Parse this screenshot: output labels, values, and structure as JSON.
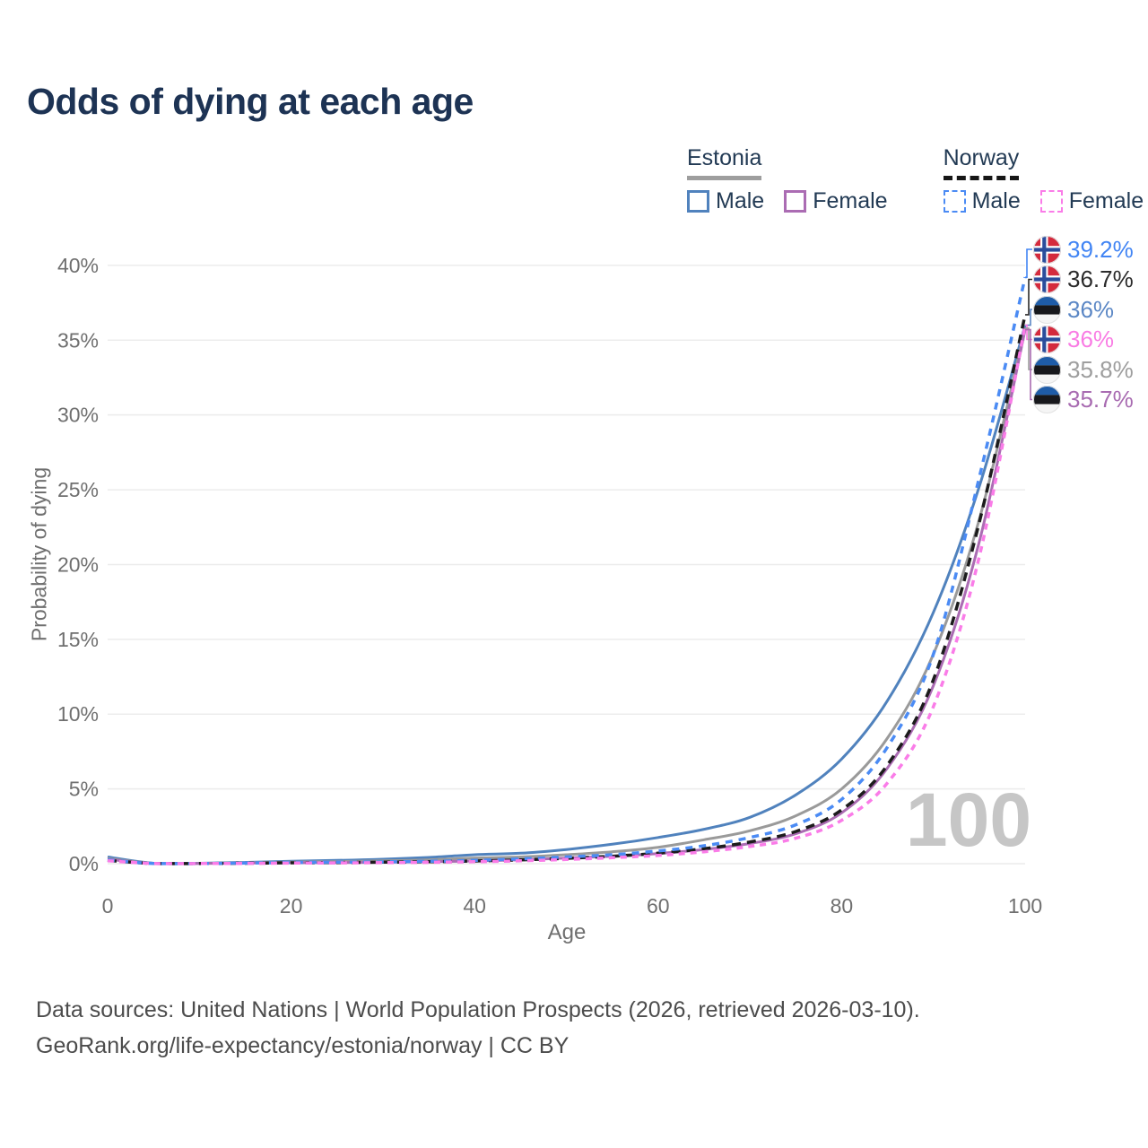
{
  "title": "Odds of dying at each age",
  "legend": {
    "groups": [
      {
        "name": "Estonia",
        "line_style": "solid",
        "combined_color": "#9e9e9e",
        "items": [
          {
            "label": "Male",
            "color": "#5082bd",
            "dashed": false
          },
          {
            "label": "Female",
            "color": "#ab6cb3",
            "dashed": false
          }
        ]
      },
      {
        "name": "Norway",
        "line_style": "dashed",
        "combined_color": "#161616",
        "items": [
          {
            "label": "Male",
            "color": "#4b8bf4",
            "dashed": true
          },
          {
            "label": "Female",
            "color": "#fa7ce8",
            "dashed": true
          }
        ]
      }
    ]
  },
  "chart_data": {
    "type": "line",
    "title": "Odds of dying at each age",
    "xlabel": "Age",
    "ylabel": "Probability of dying",
    "xlim": [
      0,
      100
    ],
    "ylim": [
      0,
      40
    ],
    "x_ticks": [
      "0",
      "20",
      "40",
      "60",
      "80",
      "100"
    ],
    "x_tick_values": [
      0,
      20,
      40,
      60,
      80,
      100
    ],
    "y_ticks": [
      "0%",
      "5%",
      "10%",
      "15%",
      "20%",
      "25%",
      "30%",
      "35%",
      "40%"
    ],
    "y_tick_values": [
      0,
      5,
      10,
      15,
      20,
      25,
      30,
      35,
      40
    ],
    "grid": true,
    "legend_position": "top-right",
    "hover_age_watermark": "100",
    "unit": "percent",
    "ages": [
      0,
      5,
      10,
      15,
      20,
      25,
      30,
      35,
      40,
      45,
      50,
      55,
      60,
      65,
      70,
      75,
      80,
      85,
      90,
      95,
      100
    ],
    "series": [
      {
        "name": "Estonia Male",
        "country": "estonia",
        "sex": "male",
        "color": "#5082bd",
        "dashed": false,
        "values": [
          0.45,
          0.03,
          0.03,
          0.09,
          0.17,
          0.22,
          0.3,
          0.42,
          0.6,
          0.7,
          0.95,
          1.3,
          1.75,
          2.3,
          3.1,
          4.6,
          7.0,
          10.9,
          16.8,
          25.2,
          36.0
        ],
        "end_label": "36%"
      },
      {
        "name": "Estonia Combined",
        "country": "estonia",
        "sex": "both",
        "color": "#9a9a9a",
        "dashed": false,
        "values": [
          0.35,
          0.02,
          0.02,
          0.06,
          0.11,
          0.14,
          0.19,
          0.26,
          0.38,
          0.45,
          0.6,
          0.8,
          1.1,
          1.6,
          2.2,
          3.2,
          5.0,
          8.4,
          14.0,
          23.0,
          35.8
        ],
        "end_label": "35.8%"
      },
      {
        "name": "Estonia Female",
        "country": "estonia",
        "sex": "female",
        "color": "#ab6cb3",
        "dashed": false,
        "values": [
          0.3,
          0.02,
          0.02,
          0.04,
          0.06,
          0.07,
          0.09,
          0.13,
          0.18,
          0.26,
          0.38,
          0.5,
          0.68,
          0.95,
          1.35,
          2.0,
          3.4,
          6.4,
          11.9,
          21.5,
          35.7
        ],
        "end_label": "35.7%"
      },
      {
        "name": "Norway Combined",
        "country": "norway",
        "sex": "both",
        "color": "#1c1c1c",
        "dashed": true,
        "values": [
          0.22,
          0.01,
          0.01,
          0.03,
          0.06,
          0.08,
          0.1,
          0.13,
          0.18,
          0.26,
          0.36,
          0.5,
          0.7,
          1.0,
          1.45,
          2.15,
          3.6,
          6.6,
          12.3,
          22.8,
          36.7
        ],
        "end_label": "36.7%"
      },
      {
        "name": "Norway Male",
        "country": "norway",
        "sex": "male",
        "color": "#4b8bf4",
        "dashed": true,
        "values": [
          0.25,
          0.01,
          0.01,
          0.04,
          0.08,
          0.1,
          0.12,
          0.16,
          0.22,
          0.32,
          0.45,
          0.6,
          0.85,
          1.2,
          1.75,
          2.6,
          4.3,
          7.8,
          14.0,
          25.8,
          39.2
        ],
        "end_label": "39.2%"
      },
      {
        "name": "Norway Female",
        "country": "norway",
        "sex": "female",
        "color": "#fa7ce8",
        "dashed": true,
        "values": [
          0.2,
          0.01,
          0.01,
          0.02,
          0.04,
          0.05,
          0.07,
          0.09,
          0.13,
          0.19,
          0.28,
          0.4,
          0.55,
          0.8,
          1.15,
          1.7,
          2.9,
          5.4,
          10.5,
          20.5,
          36.0
        ],
        "end_label": "36%"
      }
    ]
  },
  "end_labels": [
    {
      "text": "39.2%",
      "color": "#4285f4",
      "flag": "norway",
      "series": "Norway Male"
    },
    {
      "text": "36.7%",
      "color": "#2b2b2b",
      "flag": "norway",
      "series": "Norway Combined"
    },
    {
      "text": "36%",
      "color": "#5b87c5",
      "flag": "estonia",
      "series": "Estonia Male"
    },
    {
      "text": "36%",
      "color": "#f97ce4",
      "flag": "norway",
      "series": "Norway Female"
    },
    {
      "text": "35.8%",
      "color": "#9e9e9e",
      "flag": "estonia",
      "series": "Estonia Combined"
    },
    {
      "text": "35.7%",
      "color": "#a86bb1",
      "flag": "estonia",
      "series": "Estonia Female"
    }
  ],
  "flags": {
    "estonia": {
      "blue": "#1e5ca8",
      "black": "#17181c",
      "white": "#f5f5f5"
    },
    "norway": {
      "red": "#d42a3d",
      "blue": "#2b4d9c",
      "white": "#ffffff"
    }
  },
  "colors": {
    "title": "#1d3354",
    "axis_text": "#6f6f6f",
    "gridline": "#ececec",
    "watermark": "#c6c6c6",
    "footer_text": "#4c4c4c"
  },
  "footer": {
    "line1": "Data sources: United Nations | World Population Prospects (2026, retrieved 2026-03-10).",
    "line2": "GeoRank.org/life-expectancy/estonia/norway | CC BY"
  }
}
